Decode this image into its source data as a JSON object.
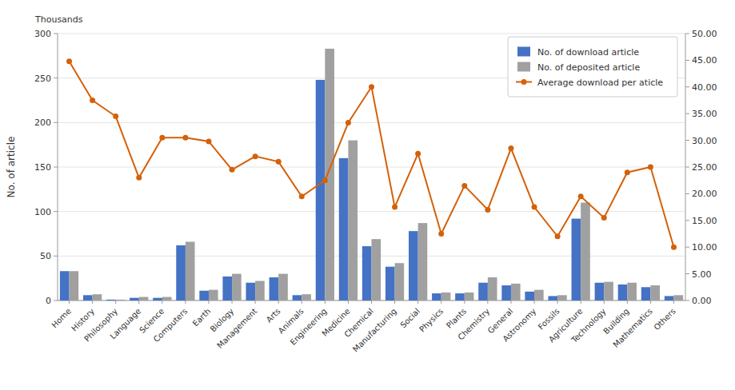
{
  "chart_data": {
    "type": "bar",
    "categories": [
      "Home",
      "History",
      "Philosophy",
      "Language",
      "Science",
      "Computers",
      "Earth",
      "Biology",
      "Management",
      "Arts",
      "Animals",
      "Engineering",
      "Medicine",
      "Chemical",
      "Manufacturing",
      "Social",
      "Physics",
      "Plants",
      "Chemistry",
      "General",
      "Astronomy",
      "Fossils",
      "Agriculture",
      "Technology",
      "Building",
      "Mathematics",
      "Others"
    ],
    "series": [
      {
        "name": "No. of download article",
        "color": "#4472C4",
        "values": [
          33,
          6,
          1,
          3,
          3,
          62,
          11,
          27,
          20,
          26,
          6,
          248,
          160,
          61,
          38,
          78,
          8,
          8,
          20,
          17,
          10,
          5,
          92,
          20,
          18,
          15,
          5
        ]
      },
      {
        "name": "No. of deposited article",
        "color": "#A0A0A0",
        "values": [
          33,
          7,
          1,
          4,
          4,
          66,
          12,
          30,
          22,
          30,
          7,
          283,
          180,
          69,
          42,
          87,
          9,
          9,
          26,
          19,
          12,
          6,
          110,
          21,
          20,
          17,
          6
        ]
      },
      {
        "name": "Average download per aticle",
        "type": "line",
        "axis": "y2",
        "color": "#D4610A",
        "marker": "circle",
        "values": [
          44.8,
          37.5,
          34.5,
          23.0,
          30.5,
          30.5,
          29.8,
          24.5,
          27.0,
          26.0,
          19.5,
          22.5,
          33.3,
          40.0,
          17.5,
          27.5,
          12.5,
          21.5,
          17.0,
          28.5,
          17.5,
          12.0,
          19.5,
          15.5,
          24.0,
          25.0,
          10.0
        ]
      }
    ],
    "y_label": "No. of article",
    "annotations": [
      "Thousands"
    ],
    "ylim": [
      0,
      300
    ],
    "yticks": [
      0,
      50,
      100,
      150,
      200,
      250,
      300
    ],
    "y2lim": [
      0,
      50
    ],
    "y2ticks": [
      {
        "value": 0,
        "label": "0.00"
      },
      {
        "value": 5,
        "label": "5.00"
      },
      {
        "value": 10,
        "label": "10.00"
      },
      {
        "value": 15,
        "label": "15.00"
      },
      {
        "value": 20,
        "label": "20.00"
      },
      {
        "value": 25,
        "label": "25.00"
      },
      {
        "value": 30,
        "label": "30.00"
      },
      {
        "value": 35,
        "label": "35.00"
      },
      {
        "value": 40,
        "label": "40.00"
      },
      {
        "value": 45,
        "label": "45.00"
      },
      {
        "value": 50,
        "label": "50.00"
      }
    ],
    "grid": true,
    "legend": "upper right"
  }
}
